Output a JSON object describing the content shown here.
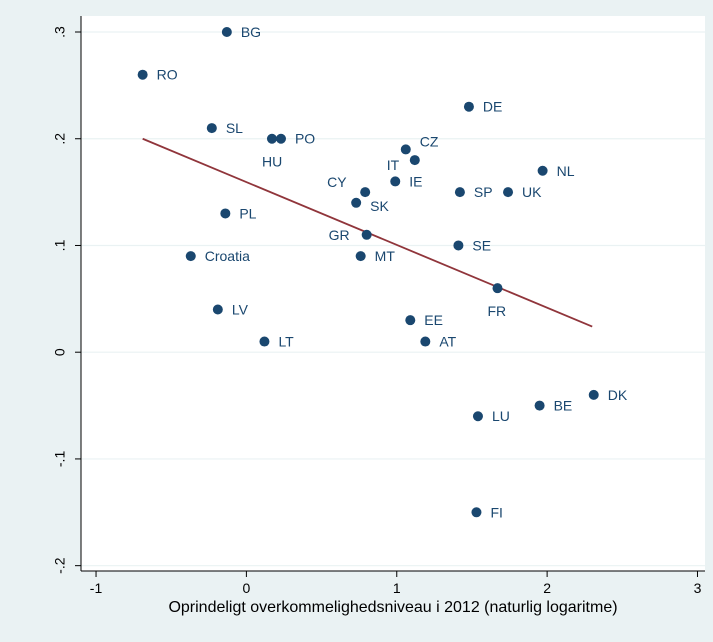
{
  "chart_data": {
    "type": "scatter",
    "title": "",
    "xlabel": "Oprindeligt overkommelighedsniveau i 2012 (naturlig logaritme)",
    "ylabel": "",
    "xlim": [
      -1.1,
      3.05
    ],
    "ylim": [
      -0.205,
      0.315
    ],
    "x_ticks": [
      -1,
      0,
      1,
      2,
      3
    ],
    "x_tick_labels": [
      "-1",
      "0",
      "1",
      "2",
      "3"
    ],
    "y_ticks": [
      -0.2,
      -0.1,
      0,
      0.1,
      0.2,
      0.3
    ],
    "y_tick_labels": [
      "-.2",
      "-.1",
      "0",
      ".1",
      ".2",
      ".3"
    ],
    "grid": "horizontal",
    "colors": {
      "background": "#eaf2f3",
      "plot_background": "#ffffff",
      "marker": "#1a476f",
      "fit_line": "#90353b",
      "grid": "#eaf2f3"
    },
    "points": [
      {
        "label": "BG",
        "x": -0.13,
        "y": 0.3
      },
      {
        "label": "RO",
        "x": -0.69,
        "y": 0.26
      },
      {
        "label": "DE",
        "x": 1.48,
        "y": 0.23
      },
      {
        "label": "SL",
        "x": -0.23,
        "y": 0.21
      },
      {
        "label": "HU",
        "x": 0.17,
        "y": 0.2
      },
      {
        "label": "PO",
        "x": 0.23,
        "y": 0.2
      },
      {
        "label": "CZ",
        "x": 1.06,
        "y": 0.19
      },
      {
        "label": "IT",
        "x": 1.12,
        "y": 0.18
      },
      {
        "label": "NL",
        "x": 1.97,
        "y": 0.17
      },
      {
        "label": "IE",
        "x": 0.99,
        "y": 0.16
      },
      {
        "label": "CY",
        "x": 0.79,
        "y": 0.15
      },
      {
        "label": "SP",
        "x": 1.42,
        "y": 0.15
      },
      {
        "label": "UK",
        "x": 1.74,
        "y": 0.15
      },
      {
        "label": "SK",
        "x": 0.73,
        "y": 0.14
      },
      {
        "label": "PL",
        "x": -0.14,
        "y": 0.13
      },
      {
        "label": "GR",
        "x": 0.8,
        "y": 0.11
      },
      {
        "label": "SE",
        "x": 1.41,
        "y": 0.1
      },
      {
        "label": "Croatia",
        "x": -0.37,
        "y": 0.09
      },
      {
        "label": "MT",
        "x": 0.76,
        "y": 0.09
      },
      {
        "label": "FR",
        "x": 1.67,
        "y": 0.06
      },
      {
        "label": "LV",
        "x": -0.19,
        "y": 0.04
      },
      {
        "label": "EE",
        "x": 1.09,
        "y": 0.03
      },
      {
        "label": "LT",
        "x": 0.12,
        "y": 0.01
      },
      {
        "label": "AT",
        "x": 1.19,
        "y": 0.01
      },
      {
        "label": "DK",
        "x": 2.31,
        "y": -0.04
      },
      {
        "label": "BE",
        "x": 1.95,
        "y": -0.05
      },
      {
        "label": "LU",
        "x": 1.54,
        "y": -0.06
      },
      {
        "label": "FI",
        "x": 1.53,
        "y": -0.15
      }
    ],
    "fit_line": {
      "x": [
        -0.69,
        2.3
      ],
      "y": [
        0.2,
        0.024
      ]
    }
  }
}
